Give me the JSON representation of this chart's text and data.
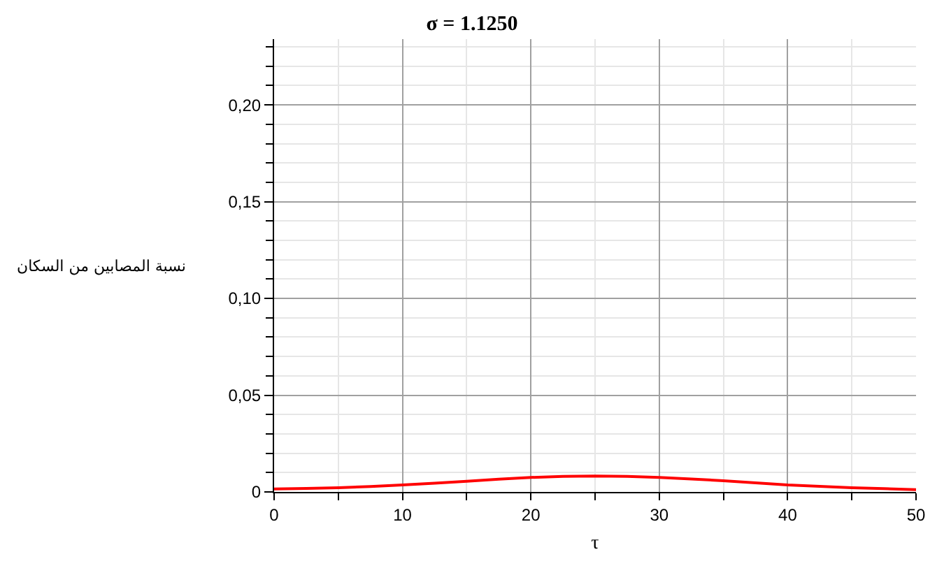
{
  "chart_data": {
    "type": "line",
    "title": "σ = 1.1250",
    "xlabel": "τ",
    "ylabel": "نسبة المصابين من السكان",
    "x": [
      0,
      2.5,
      5,
      7.5,
      10,
      12.5,
      15,
      17.5,
      20,
      22.5,
      25,
      27.5,
      30,
      32.5,
      35,
      37.5,
      40,
      42.5,
      45,
      47.5,
      50
    ],
    "series": [
      {
        "color": "#ff0000",
        "values": [
          0.0015,
          0.0018,
          0.0022,
          0.0028,
          0.0036,
          0.0045,
          0.0055,
          0.0066,
          0.0075,
          0.008,
          0.0082,
          0.008,
          0.0075,
          0.0067,
          0.0058,
          0.0047,
          0.0036,
          0.0029,
          0.0022,
          0.0017,
          0.0012
        ]
      }
    ],
    "xlim": [
      0,
      50
    ],
    "ylim": [
      0,
      0.234
    ],
    "xticks": [
      0,
      {
        "value": 5,
        "label": null
      },
      10,
      {
        "value": 15,
        "label": null
      },
      20,
      {
        "value": 25,
        "label": null
      },
      30,
      {
        "value": 35,
        "label": null
      },
      40,
      {
        "value": 45,
        "label": null
      },
      50
    ],
    "yticks": [
      0,
      {
        "value": 0.01,
        "label": null
      },
      {
        "value": 0.02,
        "label": null
      },
      {
        "value": 0.03,
        "label": null
      },
      {
        "value": 0.04,
        "label": null
      },
      {
        "value": 0.05,
        "label": "0,05"
      },
      {
        "value": 0.06,
        "label": null
      },
      {
        "value": 0.07,
        "label": null
      },
      {
        "value": 0.08,
        "label": null
      },
      {
        "value": 0.09,
        "label": null
      },
      {
        "value": 0.1,
        "label": "0,10"
      },
      {
        "value": 0.11,
        "label": null
      },
      {
        "value": 0.12,
        "label": null
      },
      {
        "value": 0.13,
        "label": null
      },
      {
        "value": 0.14,
        "label": null
      },
      {
        "value": 0.15,
        "label": "0,15"
      },
      {
        "value": 0.16,
        "label": null
      },
      {
        "value": 0.17,
        "label": null
      },
      {
        "value": 0.18,
        "label": null
      },
      {
        "value": 0.19,
        "label": null
      },
      {
        "value": 0.2,
        "label": "0,20"
      },
      {
        "value": 0.21,
        "label": null
      },
      {
        "value": 0.22,
        "label": null
      },
      {
        "value": 0.23,
        "label": null
      }
    ],
    "grid": true,
    "marker": "none",
    "line_style": "solid"
  }
}
